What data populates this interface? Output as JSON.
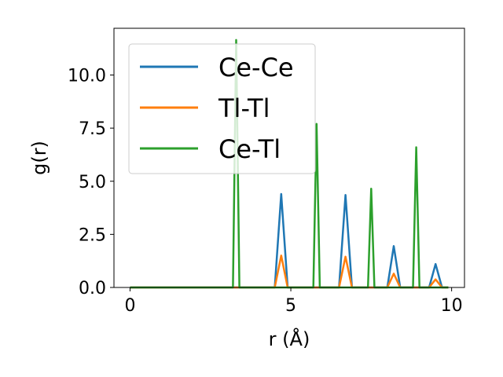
{
  "chart_data": {
    "type": "line",
    "title": "",
    "xlabel": "r (Å)",
    "ylabel": "g(r)",
    "xlim": [
      -0.5,
      10.4
    ],
    "ylim": [
      0,
      12.2
    ],
    "xticks": [
      {
        "value": 0,
        "label": "0"
      },
      {
        "value": 5,
        "label": "5"
      },
      {
        "value": 10,
        "label": "10"
      }
    ],
    "yticks": [
      {
        "value": 0,
        "label": "0.0"
      },
      {
        "value": 2.5,
        "label": "2.5"
      },
      {
        "value": 5,
        "label": "5.0"
      },
      {
        "value": 7.5,
        "label": "7.5"
      },
      {
        "value": 10,
        "label": "10.0"
      }
    ],
    "grid": false,
    "legend": "upper-left",
    "series": [
      {
        "name": "Ce-Ce",
        "color": "#1f77b4",
        "x": [
          0,
          4.5,
          4.7,
          4.9,
          6.5,
          6.7,
          6.9,
          8.0,
          8.2,
          8.4,
          9.3,
          9.5,
          9.7,
          9.9
        ],
        "y": [
          0,
          0,
          4.4,
          0,
          0,
          4.35,
          0,
          0,
          1.95,
          0,
          0,
          1.1,
          0,
          0
        ]
      },
      {
        "name": "Tl-Tl",
        "color": "#ff7f0e",
        "x": [
          0,
          4.5,
          4.7,
          4.9,
          6.5,
          6.7,
          6.9,
          8.0,
          8.2,
          8.4,
          9.3,
          9.5,
          9.7,
          9.9
        ],
        "y": [
          0,
          0,
          1.5,
          0,
          0,
          1.45,
          0,
          0,
          0.65,
          0,
          0,
          0.38,
          0,
          0
        ]
      },
      {
        "name": "Ce-Tl",
        "color": "#2ca02c",
        "x": [
          0,
          3.2,
          3.3,
          3.4,
          5.7,
          5.8,
          5.9,
          7.4,
          7.5,
          7.6,
          8.8,
          8.9,
          9.0,
          9.9
        ],
        "y": [
          0,
          0,
          11.65,
          0,
          0,
          7.7,
          0,
          0,
          4.65,
          0,
          0,
          6.6,
          0,
          0
        ]
      }
    ]
  }
}
